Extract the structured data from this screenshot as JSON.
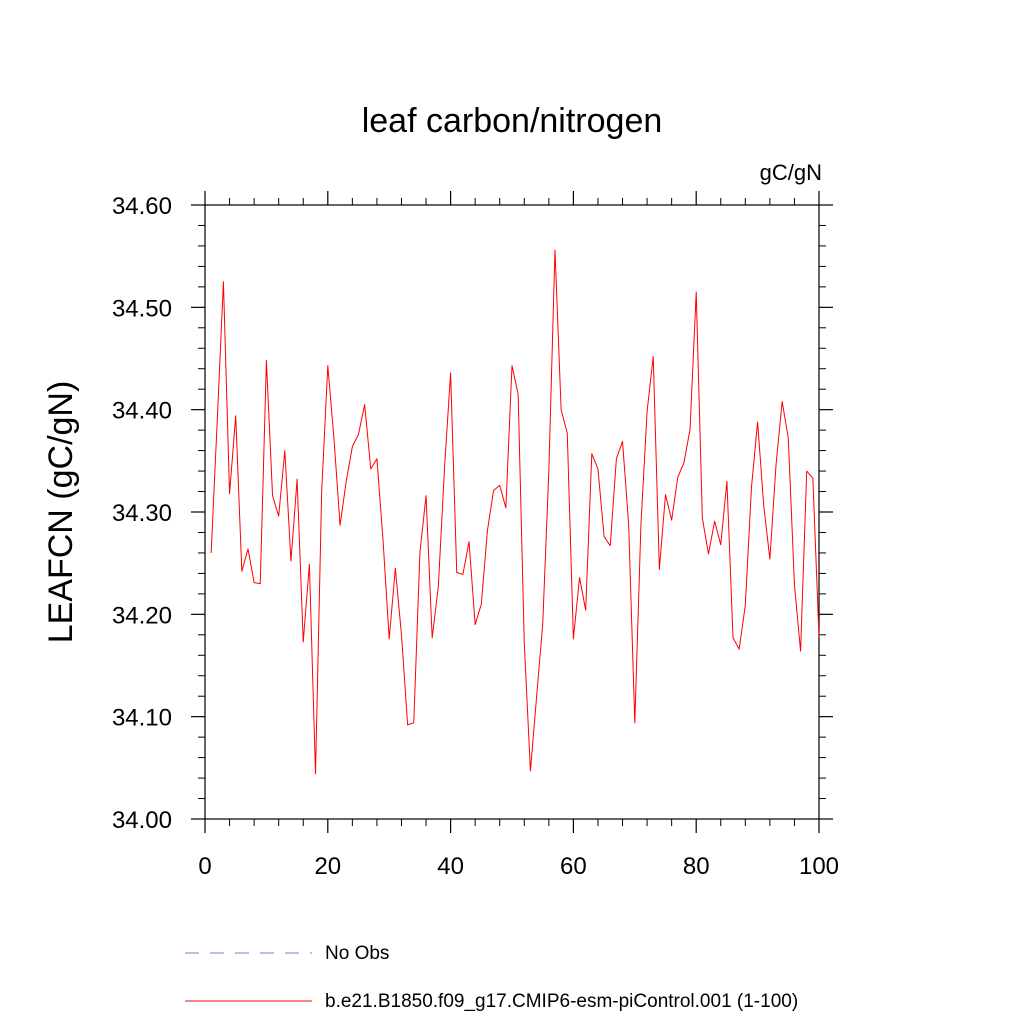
{
  "chart_data": {
    "type": "line",
    "title": "leaf carbon/nitrogen",
    "units": "gC/gN",
    "xlabel": "",
    "ylabel": "LEAFCN  (gC/gN)",
    "xlim": [
      0,
      100
    ],
    "ylim": [
      34.0,
      34.6
    ],
    "x_ticks": [
      0,
      20,
      40,
      60,
      80,
      100
    ],
    "x_tick_labels": [
      "0",
      "20",
      "40",
      "60",
      "80",
      "100"
    ],
    "y_ticks": [
      34.0,
      34.1,
      34.2,
      34.3,
      34.4,
      34.5,
      34.6
    ],
    "y_tick_labels": [
      "34.00",
      "34.10",
      "34.20",
      "34.30",
      "34.40",
      "34.50",
      "34.60"
    ],
    "grid": false,
    "legend_position": "bottom",
    "series": [
      {
        "name": "No Obs",
        "color": "#7b7bd6",
        "style": "dashed",
        "x": [],
        "y": []
      },
      {
        "name": "b.e21.B1850.f09_g17.CMIP6-esm-piControl.001 (1-100)",
        "color": "#ff0000",
        "style": "solid",
        "x": [
          1,
          2,
          3,
          4,
          5,
          6,
          7,
          8,
          9,
          10,
          11,
          12,
          13,
          14,
          15,
          16,
          17,
          18,
          19,
          20,
          21,
          22,
          23,
          24,
          25,
          26,
          27,
          28,
          29,
          30,
          31,
          32,
          33,
          34,
          35,
          36,
          37,
          38,
          39,
          40,
          41,
          42,
          43,
          44,
          45,
          46,
          47,
          48,
          49,
          50,
          51,
          52,
          53,
          54,
          55,
          56,
          57,
          58,
          59,
          60,
          61,
          62,
          63,
          64,
          65,
          66,
          67,
          68,
          69,
          70,
          71,
          72,
          73,
          74,
          75,
          76,
          77,
          78,
          79,
          80,
          81,
          82,
          83,
          84,
          85,
          86,
          87,
          88,
          89,
          90,
          91,
          92,
          93,
          94,
          95,
          96,
          97,
          98,
          99,
          100
        ],
        "y": [
          34.26,
          34.39,
          34.525,
          34.318,
          34.394,
          34.242,
          34.264,
          34.231,
          34.23,
          34.448,
          34.316,
          34.296,
          34.36,
          34.252,
          34.332,
          34.173,
          34.249,
          34.044,
          34.32,
          34.443,
          34.372,
          34.287,
          34.33,
          34.364,
          34.376,
          34.405,
          34.342,
          34.352,
          34.272,
          34.176,
          34.245,
          34.18,
          34.092,
          34.094,
          34.26,
          34.316,
          34.177,
          34.227,
          34.342,
          34.436,
          34.241,
          34.239,
          34.271,
          34.19,
          34.21,
          34.282,
          34.321,
          34.326,
          34.304,
          34.443,
          34.415,
          34.172,
          34.047,
          34.119,
          34.19,
          34.34,
          34.556,
          34.4,
          34.377,
          34.176,
          34.236,
          34.204,
          34.357,
          34.342,
          34.276,
          34.267,
          34.352,
          34.369,
          34.288,
          34.094,
          34.288,
          34.398,
          34.452,
          34.244,
          34.317,
          34.292,
          34.334,
          34.348,
          34.381,
          34.515,
          34.294,
          34.259,
          34.291,
          34.268,
          34.33,
          34.177,
          34.166,
          34.209,
          34.324,
          34.388,
          34.306,
          34.254,
          34.346,
          34.408,
          34.372,
          34.229,
          34.164,
          34.34,
          34.333,
          34.178
        ]
      }
    ]
  }
}
